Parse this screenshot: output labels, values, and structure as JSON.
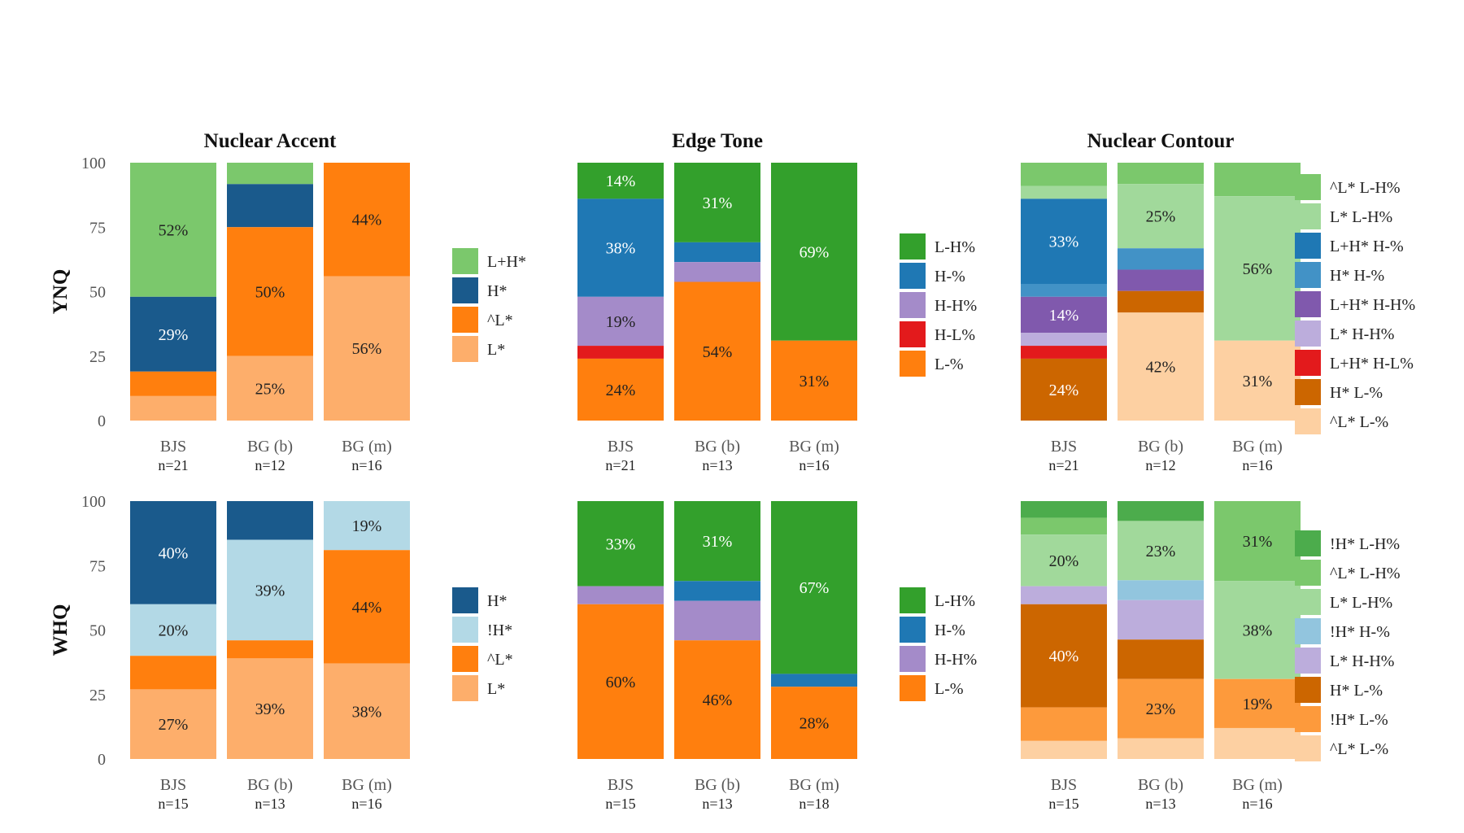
{
  "rows": [
    {
      "label": "YNQ",
      "panels": [
        {
          "title": "Nuclear Accent",
          "categories": [
            "BJS",
            "BG (b)",
            "BG (m)"
          ],
          "ns": [
            "n=21",
            "n=12",
            "n=16"
          ],
          "legend": [
            "L+H*",
            "H*",
            "^L*",
            "L*"
          ],
          "colors": [
            "#7bc86c",
            "#1a5a8c",
            "#ff7f0e",
            "#fdae6b"
          ],
          "text_colors": [
            "#222222",
            "#ffffff",
            "#222222",
            "#222222"
          ],
          "values": [
            [
              52,
              29,
              9.5,
              9.5
            ],
            [
              8.3,
              16.7,
              50,
              25
            ],
            [
              0,
              0,
              44,
              56
            ]
          ],
          "labels": [
            [
              "52%",
              "29%",
              "",
              ""
            ],
            [
              "",
              "",
              "50%",
              "25%"
            ],
            [
              "",
              "",
              "44%",
              "56%"
            ]
          ]
        },
        {
          "title": "Edge Tone",
          "categories": [
            "BJS",
            "BG (b)",
            "BG (m)"
          ],
          "ns": [
            "n=21",
            "n=13",
            "n=16"
          ],
          "legend": [
            "L-H%",
            "H-%",
            "H-H%",
            "H-L%",
            "L-%"
          ],
          "colors": [
            "#33a02c",
            "#1f78b4",
            "#a48bc9",
            "#e31a1c",
            "#ff7f0e"
          ],
          "text_colors": [
            "#ffffff",
            "#ffffff",
            "#222222",
            "#ffffff",
            "#222222"
          ],
          "values": [
            [
              14,
              38,
              19,
              5,
              24
            ],
            [
              31,
              7.7,
              7.7,
              0,
              54
            ],
            [
              69,
              0,
              0,
              0,
              31
            ]
          ],
          "labels": [
            [
              "14%",
              "38%",
              "19%",
              "",
              "24%"
            ],
            [
              "31%",
              "",
              "",
              "",
              "54%"
            ],
            [
              "69%",
              "",
              "",
              "",
              "31%"
            ]
          ]
        },
        {
          "title": "Nuclear Contour",
          "categories": [
            "BJS",
            "BG (b)",
            "BG (m)"
          ],
          "ns": [
            "n=21",
            "n=12",
            "n=16"
          ],
          "legend": [
            "^L* L-H%",
            "L* L-H%",
            "L+H* H-%",
            "H* H-%",
            "L+H* H-H%",
            "L* H-H%",
            "L+H* H-L%",
            "H* L-%",
            "^L* L-%"
          ],
          "colors": [
            "#7bc86c",
            "#a1d99b",
            "#1f78b4",
            "#4292c6",
            "#8059ad",
            "#bcaddc",
            "#e31a1c",
            "#cc6600",
            "#fdd0a2"
          ],
          "text_colors": [
            "#222222",
            "#222222",
            "#ffffff",
            "#ffffff",
            "#ffffff",
            "#222222",
            "#ffffff",
            "#ffffff",
            "#222222"
          ],
          "values": [
            [
              9,
              5,
              33,
              5,
              14,
              5,
              5,
              24,
              0
            ],
            [
              8.3,
              25,
              0,
              8.3,
              8.3,
              0,
              0,
              8.4,
              42
            ],
            [
              13,
              56,
              0,
              0,
              0,
              0,
              0,
              0,
              31
            ]
          ],
          "labels": [
            [
              "",
              "",
              "33%",
              "",
              "14%",
              "",
              "",
              "24%",
              ""
            ],
            [
              "",
              "25%",
              "",
              "",
              "",
              "",
              "",
              "",
              "42%"
            ],
            [
              "",
              "56%",
              "",
              "",
              "",
              "",
              "",
              "",
              "31%"
            ]
          ]
        }
      ]
    },
    {
      "label": "WHQ",
      "panels": [
        {
          "title": "",
          "categories": [
            "BJS",
            "BG (b)",
            "BG (m)"
          ],
          "ns": [
            "n=15",
            "n=13",
            "n=16"
          ],
          "legend": [
            "H*",
            "!H*",
            "^L*",
            "L*"
          ],
          "colors": [
            "#1a5a8c",
            "#b3d9e6",
            "#ff7f0e",
            "#fdae6b"
          ],
          "text_colors": [
            "#ffffff",
            "#222222",
            "#222222",
            "#222222"
          ],
          "values": [
            [
              40,
              20,
              13,
              27
            ],
            [
              15,
              39,
              7,
              39
            ],
            [
              0,
              19,
              44,
              37
            ]
          ],
          "labels": [
            [
              "40%",
              "20%",
              "",
              "27%"
            ],
            [
              "",
              "39%",
              "",
              "39%"
            ],
            [
              "",
              "19%",
              "44%",
              "38%"
            ]
          ]
        },
        {
          "title": "",
          "categories": [
            "BJS",
            "BG (b)",
            "BG (m)"
          ],
          "ns": [
            "n=15",
            "n=13",
            "n=18"
          ],
          "legend": [
            "L-H%",
            "H-%",
            "H-H%",
            "L-%"
          ],
          "colors": [
            "#33a02c",
            "#1f78b4",
            "#a48bc9",
            "#ff7f0e"
          ],
          "text_colors": [
            "#ffffff",
            "#ffffff",
            "#222222",
            "#222222"
          ],
          "values": [
            [
              33,
              0,
              7,
              60
            ],
            [
              31,
              7.7,
              15.3,
              46
            ],
            [
              67,
              5,
              0,
              28
            ]
          ],
          "labels": [
            [
              "33%",
              "",
              "",
              "60%"
            ],
            [
              "31%",
              "",
              "",
              "46%"
            ],
            [
              "67%",
              "",
              "",
              "28%"
            ]
          ]
        },
        {
          "title": "",
          "categories": [
            "BJS",
            "BG (b)",
            "BG (m)"
          ],
          "ns": [
            "n=15",
            "n=13",
            "n=16"
          ],
          "legend": [
            "!H* L-H%",
            "^L* L-H%",
            "L* L-H%",
            "!H* H-%",
            "L* H-H%",
            "H* L-%",
            "!H* L-%",
            "^L* L-%"
          ],
          "colors": [
            "#4cac4c",
            "#7bc86c",
            "#a1d99b",
            "#92c5de",
            "#bcaddc",
            "#cc6600",
            "#fd9a3c",
            "#fdd0a2"
          ],
          "text_colors": [
            "#222222",
            "#222222",
            "#222222",
            "#222222",
            "#222222",
            "#ffffff",
            "#222222",
            "#222222"
          ],
          "values": [
            [
              6.5,
              6.5,
              20,
              0,
              7,
              40,
              13,
              7
            ],
            [
              7.7,
              0,
              23,
              7.7,
              15.3,
              15.3,
              23,
              8
            ],
            [
              0,
              31,
              38,
              0,
              0,
              0,
              19,
              12
            ]
          ],
          "labels": [
            [
              "",
              "",
              "20%",
              "",
              "",
              "40%",
              "",
              ""
            ],
            [
              "",
              "",
              "23%",
              "",
              "",
              "",
              "23%",
              ""
            ],
            [
              "",
              "31%",
              "38%",
              "",
              "",
              "",
              "19%",
              ""
            ]
          ]
        }
      ]
    }
  ],
  "y_ticks": [
    "0",
    "25",
    "50",
    "75",
    "100"
  ]
}
